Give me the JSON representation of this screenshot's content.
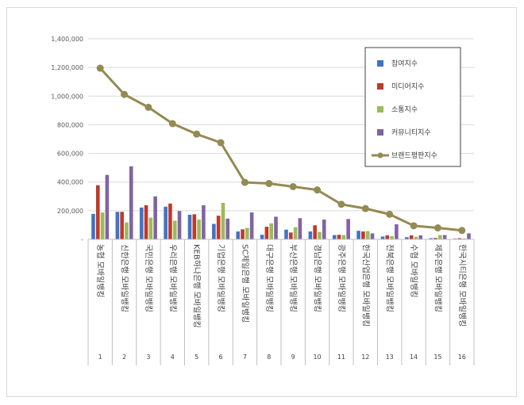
{
  "chart_data": {
    "type": "bar",
    "title": "",
    "xlabel": "",
    "ylabel": "",
    "ylim": [
      0,
      1400000
    ],
    "yticks": [
      "-",
      "200,000",
      "400,000",
      "600,000",
      "800,000",
      "1,000,000",
      "1,200,000",
      "1,400,000"
    ],
    "grid": true,
    "legend_position": "top-right",
    "categories": [
      "농협 모바일뱅킹",
      "신한은행 모바일뱅킹",
      "국민은행 모바일뱅킹",
      "우리은행 모바일뱅킹",
      "KEB하나은행 모바일뱅킹",
      "기업은행 모바일뱅킹",
      "SC제일은행 모바일뱅킹",
      "대구은행 모바일뱅킹",
      "부산은행 모바일뱅킹",
      "경남은행 모바일뱅킹",
      "광주은행 모바일뱅킹",
      "한국산업은행 모바일뱅킹",
      "전북은행 모바일뱅킹",
      "수협 모바일뱅킹",
      "제주은행 모바일뱅킹",
      "한국시티은행 모바일뱅킹"
    ],
    "ranks": [
      "1",
      "2",
      "3",
      "4",
      "5",
      "6",
      "7",
      "8",
      "9",
      "10",
      "11",
      "12",
      "13",
      "14",
      "15",
      "16"
    ],
    "series": [
      {
        "name": "참여지수",
        "kind": "bar",
        "color": "#4472c4",
        "values": [
          178000,
          192000,
          222000,
          228000,
          172000,
          108000,
          55000,
          32000,
          68000,
          55000,
          30000,
          60000,
          20000,
          15000,
          8000,
          5000
        ]
      },
      {
        "name": "미디어지수",
        "kind": "bar",
        "color": "#c0392b",
        "values": [
          378000,
          192000,
          238000,
          250000,
          175000,
          165000,
          70000,
          88000,
          48000,
          98000,
          32000,
          55000,
          28000,
          28000,
          10000,
          8000
        ]
      },
      {
        "name": "소통지수",
        "kind": "bar",
        "color": "#9bbb59",
        "values": [
          188000,
          118000,
          152000,
          130000,
          138000,
          255000,
          80000,
          112000,
          85000,
          52000,
          30000,
          58000,
          22000,
          18000,
          30000,
          6000
        ]
      },
      {
        "name": "커뮤니티지수",
        "kind": "bar",
        "color": "#8064a2",
        "values": [
          450000,
          510000,
          300000,
          198000,
          238000,
          145000,
          188000,
          158000,
          148000,
          138000,
          142000,
          42000,
          105000,
          28000,
          30000,
          42000
        ]
      },
      {
        "name": "브랜드평판지수",
        "kind": "line",
        "color": "#948a54",
        "values": [
          1195000,
          1012000,
          922000,
          808000,
          735000,
          675000,
          398000,
          390000,
          368000,
          345000,
          245000,
          215000,
          175000,
          95000,
          80000,
          62000
        ]
      }
    ]
  }
}
